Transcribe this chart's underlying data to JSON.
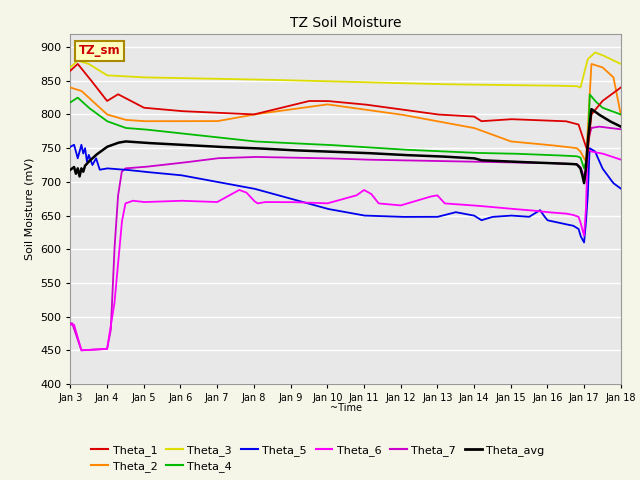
{
  "title": "TZ Soil Moisture",
  "xlabel": "~Time",
  "ylabel": "Soil Moisture (mV)",
  "ylim": [
    400,
    920
  ],
  "yticks": [
    400,
    450,
    500,
    550,
    600,
    650,
    700,
    750,
    800,
    850,
    900
  ],
  "xlim": [
    0,
    15
  ],
  "xtick_labels": [
    "Jan 3",
    "Jan 4",
    "Jan 5",
    "Jan 6",
    "Jan 7",
    "Jan 8",
    "Jan 9",
    "Jan 10",
    "Jan 11",
    "Jan 12",
    "Jan 13",
    "Jan 14",
    "Jan 15",
    "Jan 16",
    "Jan 17",
    "Jan 18"
  ],
  "legend_label": "TZ_sm",
  "colors": {
    "Theta_1": "#dd0000",
    "Theta_2": "#ff8800",
    "Theta_3": "#dddd00",
    "Theta_4": "#00bb00",
    "Theta_5": "#0000ee",
    "Theta_6": "#ff00ff",
    "Theta_7": "#cc00cc",
    "Theta_avg": "#000000"
  },
  "background_color": "#e8e8e8",
  "fig_background": "#f0f0d0",
  "grid_color": "#ffffff"
}
